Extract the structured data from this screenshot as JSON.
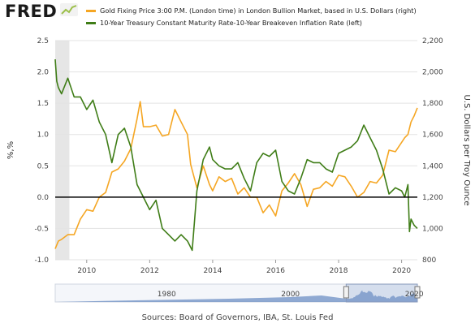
{
  "header": {
    "logo_text": "FRED"
  },
  "source_text": "Sources: Board of Governors, IBA, St. Louis Fed",
  "chart_data": {
    "type": "line",
    "title": "",
    "xlabel": "",
    "ylabel_left": "%,%",
    "ylabel_right": "U.S. Dollars per Troy Ounce",
    "xlim": [
      2009.0,
      2020.5
    ],
    "x_ticks": [
      "2010",
      "2012",
      "2014",
      "2016",
      "2018",
      "2020"
    ],
    "x_tick_values": [
      2010,
      2012,
      2014,
      2016,
      2018,
      2020
    ],
    "ylim_left": [
      -1.0,
      2.5
    ],
    "y_ticks_left": [
      "-1.0",
      "-0.5",
      "0.0",
      "0.5",
      "1.0",
      "1.5",
      "2.0",
      "2.5"
    ],
    "ylim_right": [
      800,
      2200
    ],
    "y_ticks_right": [
      "800",
      "1,000",
      "1,200",
      "1,400",
      "1,600",
      "1,800",
      "2,000",
      "2,200"
    ],
    "zero_line": 0,
    "shaded_recession": [
      2009.0,
      2009.45
    ],
    "legend_position": "top",
    "colors": {
      "gold": "#f5a623",
      "real_yield": "#3f7d17",
      "recession": "#e6e6e6",
      "navigator": "#6d8fc4"
    },
    "series": [
      {
        "name": "Gold Fixing Price 3:00 P.M. (London time) in London Bullion Market, based in U.S. Dollars (right)",
        "axis": "right",
        "color": "#f5a623",
        "x": [
          2009.0,
          2009.1,
          2009.2,
          2009.4,
          2009.6,
          2009.8,
          2010.0,
          2010.2,
          2010.4,
          2010.6,
          2010.8,
          2011.0,
          2011.2,
          2011.4,
          2011.6,
          2011.7,
          2011.8,
          2012.0,
          2012.2,
          2012.4,
          2012.6,
          2012.8,
          2012.9,
          2013.0,
          2013.2,
          2013.3,
          2013.5,
          2013.7,
          2013.9,
          2014.0,
          2014.2,
          2014.4,
          2014.6,
          2014.8,
          2015.0,
          2015.2,
          2015.4,
          2015.6,
          2015.8,
          2016.0,
          2016.2,
          2016.4,
          2016.6,
          2016.8,
          2017.0,
          2017.2,
          2017.4,
          2017.6,
          2017.8,
          2018.0,
          2018.2,
          2018.4,
          2018.6,
          2018.8,
          2019.0,
          2019.2,
          2019.4,
          2019.6,
          2019.8,
          2020.0,
          2020.1,
          2020.2,
          2020.3,
          2020.4,
          2020.5
        ],
        "y": [
          870,
          920,
          930,
          960,
          960,
          1060,
          1120,
          1110,
          1200,
          1230,
          1360,
          1380,
          1430,
          1510,
          1700,
          1810,
          1650,
          1650,
          1660,
          1590,
          1600,
          1760,
          1720,
          1680,
          1600,
          1410,
          1260,
          1400,
          1280,
          1240,
          1330,
          1300,
          1320,
          1220,
          1260,
          1200,
          1200,
          1100,
          1150,
          1080,
          1240,
          1290,
          1350,
          1280,
          1140,
          1250,
          1260,
          1300,
          1270,
          1340,
          1330,
          1270,
          1200,
          1230,
          1300,
          1290,
          1340,
          1500,
          1490,
          1550,
          1580,
          1600,
          1680,
          1720,
          1770
        ]
      },
      {
        "name": "10-Year Treasury Constant Maturity Rate-10-Year Breakeven Inflation Rate (left)",
        "axis": "left",
        "color": "#3f7d17",
        "x": [
          2009.0,
          2009.05,
          2009.1,
          2009.2,
          2009.4,
          2009.6,
          2009.8,
          2010.0,
          2010.2,
          2010.4,
          2010.6,
          2010.8,
          2011.0,
          2011.2,
          2011.4,
          2011.6,
          2011.7,
          2011.8,
          2012.0,
          2012.2,
          2012.4,
          2012.6,
          2012.8,
          2013.0,
          2013.2,
          2013.35,
          2013.5,
          2013.7,
          2013.9,
          2014.0,
          2014.2,
          2014.4,
          2014.6,
          2014.8,
          2015.0,
          2015.2,
          2015.4,
          2015.6,
          2015.8,
          2016.0,
          2016.2,
          2016.4,
          2016.6,
          2016.8,
          2017.0,
          2017.2,
          2017.4,
          2017.6,
          2017.8,
          2018.0,
          2018.2,
          2018.4,
          2018.6,
          2018.8,
          2019.0,
          2019.2,
          2019.4,
          2019.6,
          2019.8,
          2020.0,
          2020.1,
          2020.2,
          2020.25,
          2020.3,
          2020.4,
          2020.5
        ],
        "y": [
          2.2,
          1.85,
          1.75,
          1.65,
          1.9,
          1.6,
          1.6,
          1.4,
          1.55,
          1.2,
          1.0,
          0.55,
          1.0,
          1.1,
          0.8,
          0.2,
          0.1,
          0.0,
          -0.2,
          -0.05,
          -0.5,
          -0.6,
          -0.7,
          -0.6,
          -0.7,
          -0.85,
          0.1,
          0.6,
          0.8,
          0.6,
          0.5,
          0.45,
          0.45,
          0.55,
          0.3,
          0.1,
          0.55,
          0.7,
          0.65,
          0.75,
          0.25,
          0.1,
          0.05,
          0.3,
          0.6,
          0.55,
          0.55,
          0.45,
          0.4,
          0.7,
          0.75,
          0.8,
          0.9,
          1.15,
          0.95,
          0.75,
          0.45,
          0.05,
          0.15,
          0.1,
          0.0,
          0.2,
          -0.55,
          -0.35,
          -0.45,
          -0.5
        ]
      }
    ],
    "navigator": {
      "labels": [
        "1980",
        "2000",
        "2020"
      ],
      "label_values": [
        1980,
        2000,
        2020
      ],
      "range": [
        1962,
        2020.5
      ],
      "selected": [
        2009.0,
        2020.5
      ]
    }
  }
}
